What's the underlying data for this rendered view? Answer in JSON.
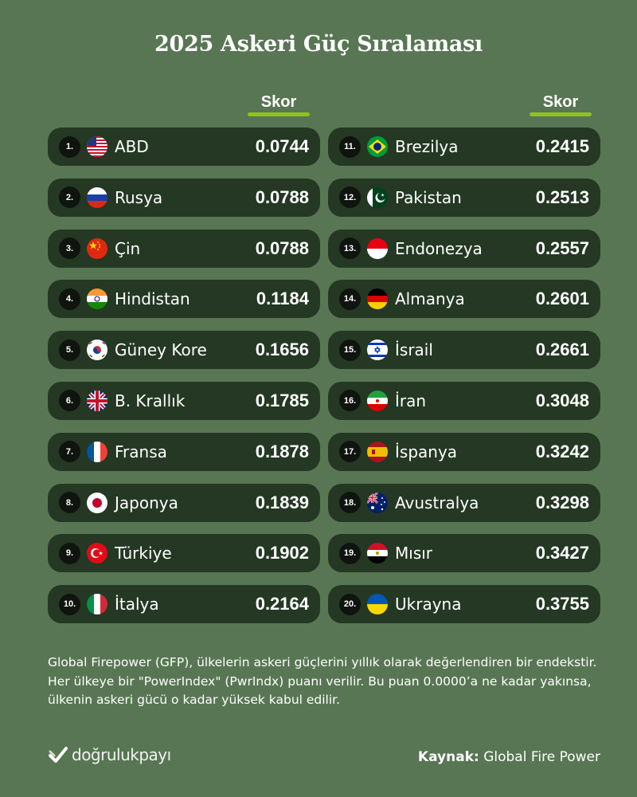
{
  "title": "2025 Askeri Güç Sıralaması",
  "score_header": "Skor",
  "left_column": [
    {
      "rank": "1.",
      "country": "ABD",
      "score": "0.0744",
      "flag": "usa-flag-icon"
    },
    {
      "rank": "2.",
      "country": "Rusya",
      "score": "0.0788",
      "flag": "russia-flag-icon"
    },
    {
      "rank": "3.",
      "country": "Çin",
      "score": "0.0788",
      "flag": "china-flag-icon"
    },
    {
      "rank": "4.",
      "country": "Hindistan",
      "score": "0.1184",
      "flag": "india-flag-icon"
    },
    {
      "rank": "5.",
      "country": "Güney Kore",
      "score": "0.1656",
      "flag": "south-korea-flag-icon"
    },
    {
      "rank": "6.",
      "country": "B. Krallık",
      "score": "0.1785",
      "flag": "uk-flag-icon"
    },
    {
      "rank": "7.",
      "country": "Fransa",
      "score": "0.1878",
      "flag": "france-flag-icon"
    },
    {
      "rank": "8.",
      "country": "Japonya",
      "score": "0.1839",
      "flag": "japan-flag-icon"
    },
    {
      "rank": "9.",
      "country": "Türkiye",
      "score": "0.1902",
      "flag": "turkey-flag-icon"
    },
    {
      "rank": "10.",
      "country": "İtalya",
      "score": "0.2164",
      "flag": "italy-flag-icon"
    }
  ],
  "right_column": [
    {
      "rank": "11.",
      "country": "Brezilya",
      "score": "0.2415",
      "flag": "brazil-flag-icon"
    },
    {
      "rank": "12.",
      "country": "Pakistan",
      "score": "0.2513",
      "flag": "pakistan-flag-icon"
    },
    {
      "rank": "13.",
      "country": "Endonezya",
      "score": "0.2557",
      "flag": "indonesia-flag-icon"
    },
    {
      "rank": "14.",
      "country": "Almanya",
      "score": "0.2601",
      "flag": "germany-flag-icon"
    },
    {
      "rank": "15.",
      "country": "İsrail",
      "score": "0.2661",
      "flag": "israel-flag-icon"
    },
    {
      "rank": "16.",
      "country": "İran",
      "score": "0.3048",
      "flag": "iran-flag-icon"
    },
    {
      "rank": "17.",
      "country": "İspanya",
      "score": "0.3242",
      "flag": "spain-flag-icon"
    },
    {
      "rank": "18.",
      "country": "Avustralya",
      "score": "0.3298",
      "flag": "australia-flag-icon"
    },
    {
      "rank": "19.",
      "country": "Mısır",
      "score": "0.3427",
      "flag": "egypt-flag-icon"
    },
    {
      "rank": "20.",
      "country": "Ukrayna",
      "score": "0.3755",
      "flag": "ukraine-flag-icon"
    }
  ],
  "note": "Global Firepower (GFP), ülkelerin askeri güçlerini yıllık olarak değerlendiren bir endekstir. Her ülkeye bir \"PowerIndex\" (PwrIndx) puanı verilir. Bu puan 0.0000’a ne kadar yakınsa, ülkenin askeri gücü o kadar yüksek kabul edilir.",
  "brand": "doğrulukpayı",
  "source_label": "Kaynak:",
  "source_value": "Global Fire Power",
  "colors": {
    "background": "#587653",
    "row": "#243824",
    "accent": "#8fc21c"
  }
}
